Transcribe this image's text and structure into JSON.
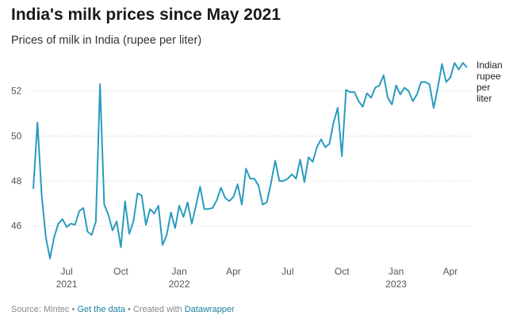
{
  "chart_data": {
    "type": "line",
    "title": "India's milk prices since May 2021",
    "subtitle": "Prices of milk in India (rupee per liter)",
    "categories": [
      null,
      null,
      null,
      null,
      null,
      null,
      null,
      null,
      "Jul 2021",
      null,
      null,
      null,
      null,
      null,
      null,
      null,
      null,
      null,
      null,
      null,
      null,
      "Oct",
      null,
      null,
      null,
      null,
      null,
      null,
      null,
      null,
      null,
      null,
      null,
      null,
      null,
      "Jan 2022",
      null,
      null,
      null,
      null,
      null,
      null,
      null,
      null,
      null,
      null,
      null,
      null,
      "Apr",
      null,
      null,
      null,
      null,
      null,
      null,
      null,
      null,
      null,
      null,
      null,
      null,
      "Jul",
      null,
      null,
      null,
      null,
      null,
      null,
      null,
      null,
      null,
      null,
      null,
      null,
      "Oct",
      null,
      null,
      null,
      null,
      null,
      null,
      null,
      null,
      null,
      null,
      null,
      null,
      "Jan 2023",
      null,
      null,
      null,
      null,
      null,
      null,
      null,
      null,
      null,
      null,
      null,
      null,
      "Apr",
      null,
      null,
      null,
      null
    ],
    "series": [
      {
        "name": "Indian rupee per liter",
        "color": "#2a9bbf",
        "values": [
          47.65,
          50.6,
          47.4,
          45.5,
          44.55,
          45.5,
          46.1,
          46.3,
          45.95,
          46.1,
          46.05,
          46.65,
          46.8,
          45.75,
          45.6,
          46.2,
          52.3,
          46.95,
          46.5,
          45.8,
          46.2,
          45.05,
          47.1,
          45.65,
          46.2,
          47.45,
          47.35,
          46.05,
          46.75,
          46.55,
          46.9,
          45.15,
          45.6,
          46.6,
          45.9,
          46.9,
          46.4,
          47.05,
          46.1,
          46.9,
          47.75,
          46.75,
          46.75,
          46.8,
          47.15,
          47.7,
          47.25,
          47.1,
          47.3,
          47.85,
          46.95,
          48.55,
          48.1,
          48.1,
          47.8,
          46.95,
          47.05,
          47.9,
          48.9,
          48.0,
          48.0,
          48.1,
          48.3,
          48.1,
          48.95,
          47.95,
          49.05,
          48.85,
          49.5,
          49.85,
          49.5,
          49.65,
          50.6,
          51.25,
          49.1,
          52.05,
          51.95,
          51.95,
          51.55,
          51.3,
          51.9,
          51.7,
          52.15,
          52.25,
          52.7,
          51.7,
          51.4,
          52.25,
          51.85,
          52.15,
          52.0,
          51.55,
          51.85,
          52.4,
          52.4,
          52.3,
          51.25,
          52.15,
          53.2,
          52.4,
          52.6,
          53.25,
          52.95,
          53.25,
          53.05
        ]
      }
    ],
    "ylim": [
      44.4,
      53.4
    ],
    "yticks": [
      46,
      48,
      50,
      52
    ],
    "grid": true,
    "footer": {
      "source": "Source: Mintec",
      "separator": "•",
      "get_data": "Get the data",
      "created": "Created with",
      "tool": "Datawrapper"
    }
  }
}
